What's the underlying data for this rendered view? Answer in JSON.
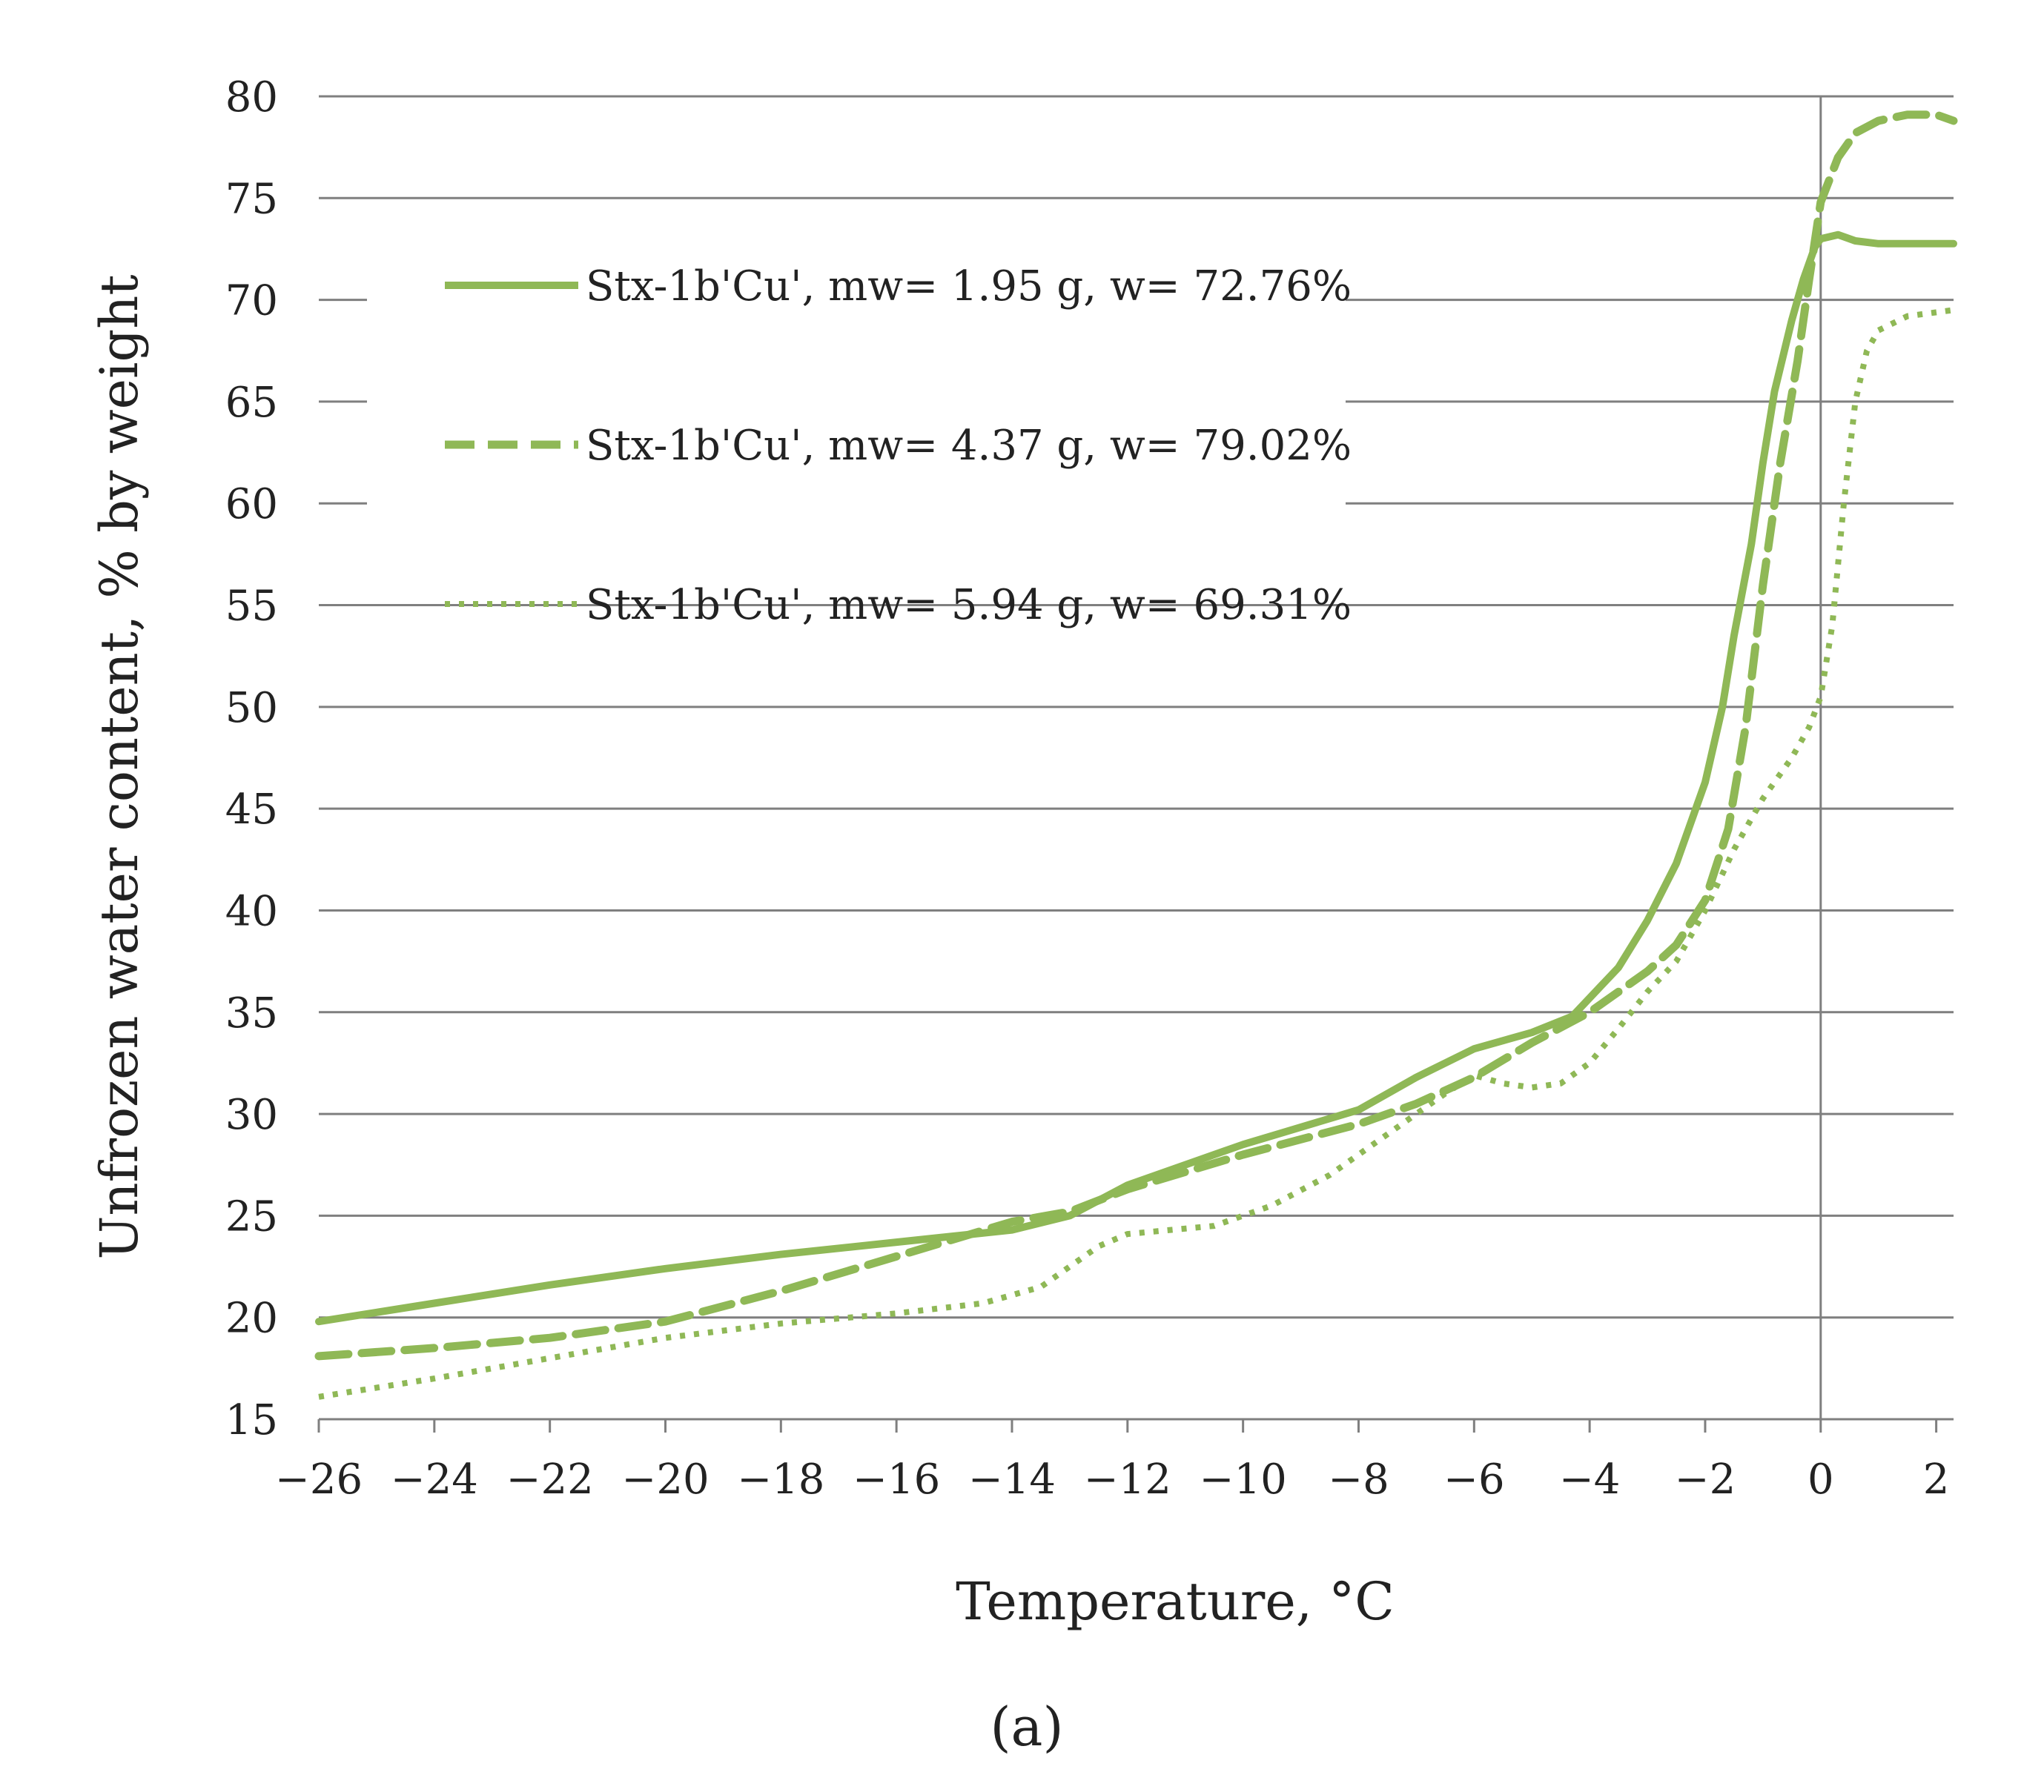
{
  "chart_data": {
    "type": "line",
    "title": "",
    "xlabel": "Temperature,  °C",
    "ylabel": "Unfrozen water content, % by weight",
    "xlim": [
      -26,
      2.3
    ],
    "ylim": [
      15,
      80
    ],
    "x_ticks": [
      -26,
      -24,
      -22,
      -20,
      -18,
      -16,
      -14,
      -12,
      -10,
      -8,
      -6,
      -4,
      -2,
      0,
      2
    ],
    "x_tick_labels": [
      "−26",
      "−24",
      "−22",
      "−20",
      "−18",
      "−16",
      "−14",
      "−12",
      "−10",
      "−8",
      "−6",
      "−4",
      "−2",
      "0",
      "2"
    ],
    "y_ticks": [
      15,
      20,
      25,
      30,
      35,
      40,
      45,
      50,
      55,
      60,
      65,
      70,
      75,
      80
    ],
    "y_tick_labels": [
      "15",
      "20",
      "25",
      "30",
      "35",
      "40",
      "45",
      "50",
      "55",
      "60",
      "65",
      "70",
      "75",
      "80"
    ],
    "grid": "horizontal",
    "legend_position": "upper-left",
    "series": [
      {
        "name": "Stx-1b'Cu', mw= 1.95 g, w= 72.76%",
        "style": "solid",
        "x": [
          -26,
          -24,
          -22,
          -20,
          -18,
          -16,
          -14,
          -13,
          -12,
          -10,
          -8,
          -7,
          -6,
          -5,
          -4.3,
          -3.5,
          -3,
          -2.5,
          -2,
          -1.7,
          -1.5,
          -1.2,
          -1,
          -0.8,
          -0.5,
          -0.3,
          -0.1,
          0,
          0.3,
          0.6,
          1,
          2.3
        ],
        "y": [
          19.8,
          20.7,
          21.6,
          22.4,
          23.1,
          23.7,
          24.3,
          25,
          26.5,
          28.5,
          30.2,
          31.8,
          33.2,
          34,
          34.8,
          37.2,
          39.5,
          42.3,
          46.3,
          50,
          53.5,
          58,
          62,
          65.5,
          69,
          71,
          72.6,
          73,
          73.2,
          72.9,
          72.76,
          72.76
        ]
      },
      {
        "name": "Stx-1b'Cu', mw= 4.37 g, w= 79.02%",
        "style": "dashed",
        "x": [
          -26,
          -24,
          -22,
          -20,
          -18,
          -16,
          -14,
          -13,
          -12,
          -10,
          -8,
          -7,
          -6,
          -5,
          -4,
          -3,
          -2.5,
          -2,
          -1.6,
          -1.3,
          -1,
          -0.7,
          -0.4,
          -0.2,
          0,
          0.3,
          0.6,
          1,
          1.5,
          2,
          2.3
        ],
        "y": [
          18.1,
          18.5,
          19,
          19.8,
          21.3,
          23,
          24.7,
          25.2,
          26.3,
          28,
          29.5,
          30.5,
          31.8,
          33.5,
          35,
          37,
          38.3,
          40.5,
          44,
          49,
          56,
          62,
          67,
          71,
          74.8,
          77,
          78.2,
          78.8,
          79.1,
          79.1,
          78.8
        ]
      },
      {
        "name": "Stx-1b'Cu', mw= 5.94 g, w= 69.31%",
        "style": "dotted",
        "x": [
          -26,
          -24,
          -22,
          -20,
          -18,
          -16,
          -14.5,
          -13.5,
          -12.5,
          -12,
          -10.5,
          -9.5,
          -8.5,
          -7.5,
          -6.5,
          -6,
          -5.5,
          -5,
          -4.5,
          -4,
          -3.5,
          -3,
          -2.5,
          -2,
          -1.5,
          -1,
          -0.5,
          -0.2,
          0,
          0.2,
          0.4,
          0.6,
          0.8,
          1,
          1.5,
          2.3
        ],
        "y": [
          16.1,
          17,
          18,
          19,
          19.7,
          20.2,
          20.7,
          21.5,
          23.5,
          24.1,
          24.5,
          25.5,
          27,
          29,
          31,
          31.9,
          31.5,
          31.3,
          31.5,
          32.5,
          34.2,
          36,
          37.5,
          40,
          43,
          45.5,
          47.5,
          49,
          50.5,
          54,
          60,
          65,
          67.5,
          68.5,
          69.2,
          69.5
        ]
      }
    ],
    "caption": "(a)"
  }
}
